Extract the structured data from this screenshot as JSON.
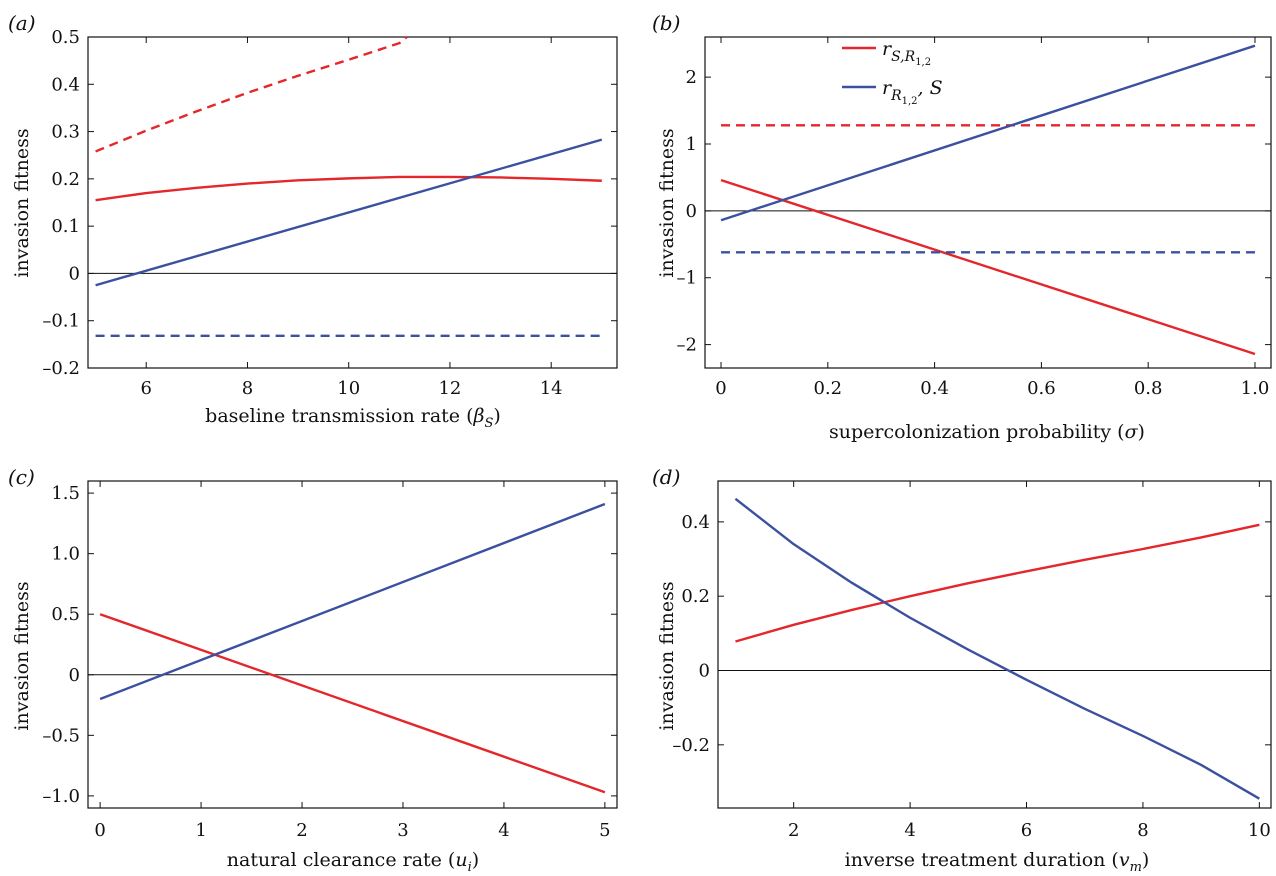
{
  "figure": {
    "panels": [
      "(a)",
      "(b)",
      "(c)",
      "(d)"
    ]
  },
  "colors": {
    "red": "#e3272b",
    "blue": "#3b51a0",
    "axis": "#111111"
  },
  "legend": {
    "red_label": "r",
    "red_sub": "S,R",
    "red_subsub": "1,2",
    "blue_label": "r",
    "blue_sub": "R",
    "blue_subsub": "1,2",
    "blue_tail": ", S"
  },
  "chart_data": [
    {
      "id": "a",
      "panel_label": "(a)",
      "type": "line",
      "xlabel": "baseline transmission rate (",
      "xlabel_symbol": "β",
      "xlabel_sub": "S",
      "xlabel_tail": ")",
      "ylabel": "invasion fitness",
      "xlim": [
        4.85,
        15.3
      ],
      "ylim": [
        -0.2,
        0.5
      ],
      "xticks": [
        6,
        8,
        10,
        12,
        14
      ],
      "xtick_labels": [
        "6",
        "8",
        "10",
        "12",
        "14"
      ],
      "yticks": [
        -0.2,
        -0.1,
        0,
        0.1,
        0.2,
        0.3,
        0.4,
        0.5
      ],
      "ytick_labels": [
        "–0.2",
        "–0.1",
        "0",
        "0.1",
        "0.2",
        "0.3",
        "0.4",
        "0.5"
      ],
      "zero_line": true,
      "series": [
        {
          "color": "red",
          "style": "dashed",
          "x": [
            5,
            6,
            7,
            8,
            9,
            10,
            11,
            11.15
          ],
          "y": [
            0.258,
            0.302,
            0.343,
            0.382,
            0.418,
            0.452,
            0.487,
            0.5
          ]
        },
        {
          "color": "red",
          "style": "solid",
          "x": [
            5,
            6,
            7,
            8,
            9,
            10,
            11,
            12,
            13,
            14,
            15
          ],
          "y": [
            0.155,
            0.17,
            0.181,
            0.19,
            0.197,
            0.201,
            0.204,
            0.204,
            0.203,
            0.2,
            0.196
          ]
        },
        {
          "color": "blue",
          "style": "solid",
          "x": [
            5,
            15
          ],
          "y": [
            -0.025,
            0.283
          ]
        },
        {
          "color": "blue",
          "style": "dashed",
          "x": [
            5,
            15
          ],
          "y": [
            -0.132,
            -0.132
          ]
        }
      ]
    },
    {
      "id": "b",
      "panel_label": "(b)",
      "type": "line",
      "xlabel": "supercolonization probability (",
      "xlabel_symbol": "σ",
      "xlabel_sub": "",
      "xlabel_tail": ")",
      "ylabel": "invasion fitness",
      "xlim": [
        -0.03,
        1.03
      ],
      "ylim": [
        -2.35,
        2.6
      ],
      "xticks": [
        0,
        0.2,
        0.4,
        0.6,
        0.8,
        1.0
      ],
      "xtick_labels": [
        "0",
        "0.2",
        "0.4",
        "0.6",
        "0.8",
        "1.0"
      ],
      "yticks": [
        -2,
        -1,
        0,
        1,
        2
      ],
      "ytick_labels": [
        "–2",
        "–1",
        "0",
        "1",
        "2"
      ],
      "zero_line": true,
      "series": [
        {
          "color": "red",
          "style": "dashed",
          "x": [
            0,
            1
          ],
          "y": [
            1.28,
            1.28
          ]
        },
        {
          "color": "red",
          "style": "solid",
          "x": [
            0,
            1
          ],
          "y": [
            0.46,
            -2.14
          ]
        },
        {
          "color": "blue",
          "style": "solid",
          "x": [
            0,
            1
          ],
          "y": [
            -0.14,
            2.47
          ]
        },
        {
          "color": "blue",
          "style": "dashed",
          "x": [
            0,
            1
          ],
          "y": [
            -0.62,
            -0.62
          ]
        }
      ]
    },
    {
      "id": "c",
      "panel_label": "(c)",
      "type": "line",
      "xlabel": "natural clearance rate (",
      "xlabel_symbol": "u",
      "xlabel_sub": "i",
      "xlabel_tail": ")",
      "ylabel": "invasion fitness",
      "xlim": [
        -0.12,
        5.12
      ],
      "ylim": [
        -1.1,
        1.6
      ],
      "xticks": [
        0,
        1,
        2,
        3,
        4,
        5
      ],
      "xtick_labels": [
        "0",
        "1",
        "2",
        "3",
        "4",
        "5"
      ],
      "yticks": [
        -1.0,
        -0.5,
        0,
        0.5,
        1.0,
        1.5
      ],
      "ytick_labels": [
        "–1.0",
        "–0.5",
        "0",
        "0.5",
        "1.0",
        "1.5"
      ],
      "zero_line": true,
      "series": [
        {
          "color": "red",
          "style": "solid",
          "x": [
            0,
            5
          ],
          "y": [
            0.5,
            -0.97
          ]
        },
        {
          "color": "blue",
          "style": "solid",
          "x": [
            0,
            5
          ],
          "y": [
            -0.2,
            1.41
          ]
        }
      ]
    },
    {
      "id": "d",
      "panel_label": "(d)",
      "type": "line",
      "xlabel": "inverse treatment duration (",
      "xlabel_symbol": "v",
      "xlabel_sub": "m",
      "xlabel_tail": ")",
      "ylabel": "invasion fitness",
      "xlim": [
        0.7,
        10.2
      ],
      "ylim": [
        -0.37,
        0.51
      ],
      "xticks": [
        2,
        4,
        6,
        8,
        10
      ],
      "xtick_labels": [
        "2",
        "4",
        "6",
        "8",
        "10"
      ],
      "yticks": [
        -0.2,
        0,
        0.2,
        0.4
      ],
      "ytick_labels": [
        "–0.2",
        "0",
        "0.2",
        "0.4"
      ],
      "zero_line": true,
      "series": [
        {
          "color": "red",
          "style": "solid",
          "x": [
            1,
            2,
            3,
            4,
            5,
            6,
            7,
            8,
            9,
            10
          ],
          "y": [
            0.078,
            0.123,
            0.163,
            0.2,
            0.235,
            0.267,
            0.298,
            0.327,
            0.358,
            0.392
          ]
        },
        {
          "color": "blue",
          "style": "solid",
          "x": [
            1,
            2,
            3,
            4,
            5,
            6,
            7,
            8,
            9,
            10
          ],
          "y": [
            0.462,
            0.34,
            0.236,
            0.142,
            0.056,
            -0.025,
            -0.103,
            -0.176,
            -0.254,
            -0.345
          ]
        }
      ]
    }
  ]
}
